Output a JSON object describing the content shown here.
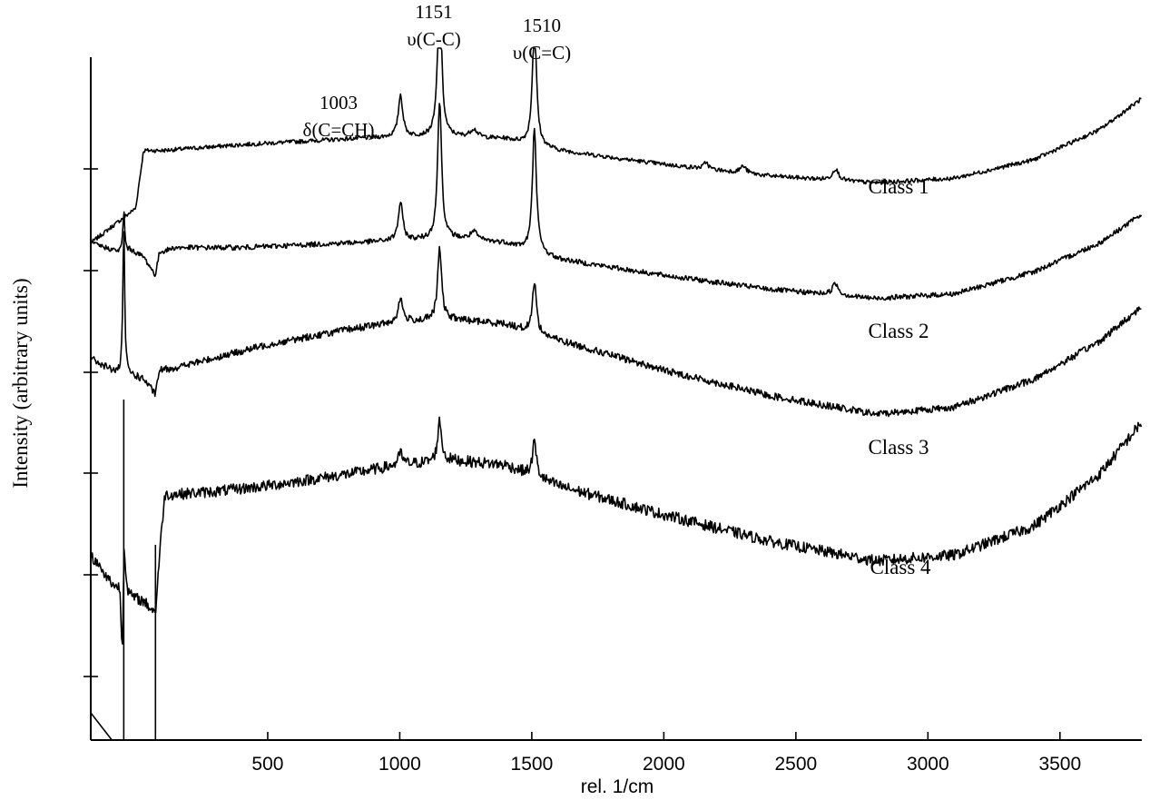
{
  "chart_data": {
    "type": "line",
    "title": "",
    "xlabel": "rel. 1/cm",
    "ylabel": "Intensity (arbitrary units)",
    "xlim": [
      -170,
      3810
    ],
    "ylim": [
      0,
      6.3
    ],
    "x_ticks": [
      500,
      1000,
      1500,
      2000,
      2500,
      3000,
      3500
    ],
    "x_tick_labels": [
      "500",
      "1000",
      "1500",
      "2000",
      "2500",
      "3000",
      "3500"
    ],
    "y_tick_count": 6,
    "y_tick_labels_shown": false,
    "grid": false,
    "legend": "none; series labels placed beside each trace",
    "line_color": "#000000",
    "peak_annotations": [
      {
        "x": 1003,
        "line1": "1003",
        "line2": "δ(C=CH)"
      },
      {
        "x": 1151,
        "line1": "1151",
        "line2": "υ(C-C)"
      },
      {
        "x": 1510,
        "line1": "1510",
        "line2": "υ(C=C)"
      }
    ],
    "series": [
      {
        "name": "Class 1",
        "baseline": [
          [
            -170,
            4.3
          ],
          [
            0,
            4.6
          ],
          [
            30,
            5.1
          ],
          [
            100,
            5.1
          ],
          [
            400,
            5.15
          ],
          [
            800,
            5.2
          ],
          [
            1000,
            5.22
          ],
          [
            1200,
            5.22
          ],
          [
            1400,
            5.2
          ],
          [
            1600,
            5.1
          ],
          [
            2000,
            4.98
          ],
          [
            2400,
            4.88
          ],
          [
            2800,
            4.82
          ],
          [
            3100,
            4.86
          ],
          [
            3400,
            5.02
          ],
          [
            3650,
            5.28
          ],
          [
            3810,
            5.55
          ]
        ],
        "peaks": [
          [
            1003,
            0.36,
            10
          ],
          [
            1151,
            1.3,
            9
          ],
          [
            1510,
            1.1,
            9
          ],
          [
            1280,
            0.07,
            16
          ],
          [
            2160,
            0.06,
            10
          ],
          [
            2300,
            0.06,
            14
          ],
          [
            2650,
            0.1,
            14
          ]
        ],
        "noise": 0.018
      },
      {
        "name": "Class 2",
        "baseline": [
          [
            -170,
            4.3
          ],
          [
            -60,
            4.22
          ],
          [
            -20,
            4.24
          ],
          [
            30,
            4.18
          ],
          [
            75,
            4.02
          ],
          [
            90,
            4.22
          ],
          [
            150,
            4.26
          ],
          [
            400,
            4.26
          ],
          [
            800,
            4.3
          ],
          [
            1000,
            4.32
          ],
          [
            1200,
            4.34
          ],
          [
            1400,
            4.3
          ],
          [
            1600,
            4.16
          ],
          [
            2000,
            4.02
          ],
          [
            2400,
            3.9
          ],
          [
            2800,
            3.82
          ],
          [
            3100,
            3.86
          ],
          [
            3400,
            4.05
          ],
          [
            3650,
            4.3
          ],
          [
            3810,
            4.55
          ]
        ],
        "peaks": [
          [
            -45,
            0.35,
            4
          ],
          [
            1003,
            0.33,
            10
          ],
          [
            1151,
            1.2,
            9
          ],
          [
            1510,
            1.08,
            9
          ],
          [
            1280,
            0.07,
            16
          ],
          [
            2650,
            0.1,
            14
          ]
        ],
        "noise": 0.022
      },
      {
        "name": "Class 3",
        "baseline": [
          [
            -170,
            3.3
          ],
          [
            -60,
            3.16
          ],
          [
            -20,
            3.16
          ],
          [
            30,
            3.12
          ],
          [
            75,
            2.99
          ],
          [
            90,
            3.2
          ],
          [
            150,
            3.22
          ],
          [
            500,
            3.42
          ],
          [
            800,
            3.55
          ],
          [
            1000,
            3.62
          ],
          [
            1200,
            3.64
          ],
          [
            1400,
            3.6
          ],
          [
            1600,
            3.46
          ],
          [
            2000,
            3.2
          ],
          [
            2400,
            2.98
          ],
          [
            2800,
            2.82
          ],
          [
            3100,
            2.88
          ],
          [
            3400,
            3.12
          ],
          [
            3650,
            3.45
          ],
          [
            3810,
            3.75
          ]
        ],
        "peaks": [
          [
            -45,
            1.3,
            4
          ],
          [
            1003,
            0.2,
            10
          ],
          [
            1151,
            0.62,
            9
          ],
          [
            1510,
            0.45,
            9
          ]
        ],
        "noise": 0.03
      },
      {
        "name": "Class 4",
        "baseline": [
          [
            -170,
            1.6
          ],
          [
            -90,
            1.35
          ],
          [
            -60,
            1.28
          ],
          [
            -45,
            0.0
          ],
          [
            -40,
            1.25
          ],
          [
            30,
            1.2
          ],
          [
            75,
            1.1
          ],
          [
            92,
            1.65
          ],
          [
            110,
            2.12
          ],
          [
            300,
            2.15
          ],
          [
            500,
            2.2
          ],
          [
            800,
            2.3
          ],
          [
            1000,
            2.38
          ],
          [
            1200,
            2.42
          ],
          [
            1400,
            2.38
          ],
          [
            1600,
            2.2
          ],
          [
            2000,
            1.95
          ],
          [
            2400,
            1.72
          ],
          [
            2800,
            1.55
          ],
          [
            3100,
            1.6
          ],
          [
            3400,
            1.85
          ],
          [
            3650,
            2.3
          ],
          [
            3810,
            2.75
          ]
        ],
        "peaks": [
          [
            -45,
            1.6,
            3
          ],
          [
            1003,
            0.1,
            10
          ],
          [
            1151,
            0.35,
            9
          ],
          [
            1510,
            0.3,
            9
          ]
        ],
        "noise": 0.048
      }
    ]
  }
}
